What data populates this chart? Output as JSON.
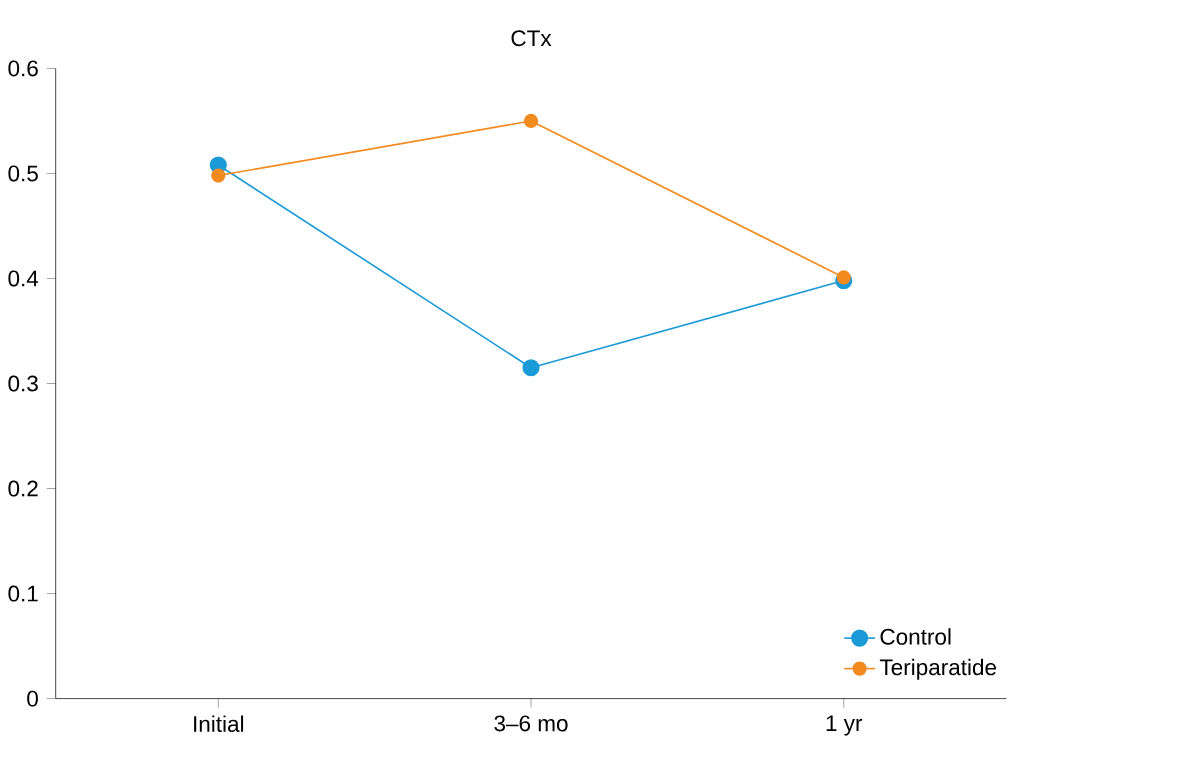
{
  "chart_data": {
    "type": "line",
    "title": "CTx",
    "categories": [
      "Initial",
      "3–6 mo",
      "1 yr"
    ],
    "series": [
      {
        "name": "Control",
        "color": "#1a9ad6",
        "values": [
          0.508,
          0.315,
          0.398
        ]
      },
      {
        "name": "Teriparatide",
        "color": "#f28a1e",
        "values": [
          0.498,
          0.55,
          0.401
        ]
      }
    ],
    "ylim": [
      0,
      0.6
    ],
    "yticks": [
      0,
      0.1,
      0.2,
      0.3,
      0.4,
      0.5,
      0.6
    ],
    "legend": "bottom right",
    "marker": "circle",
    "line_style": "solid",
    "grid": false
  }
}
